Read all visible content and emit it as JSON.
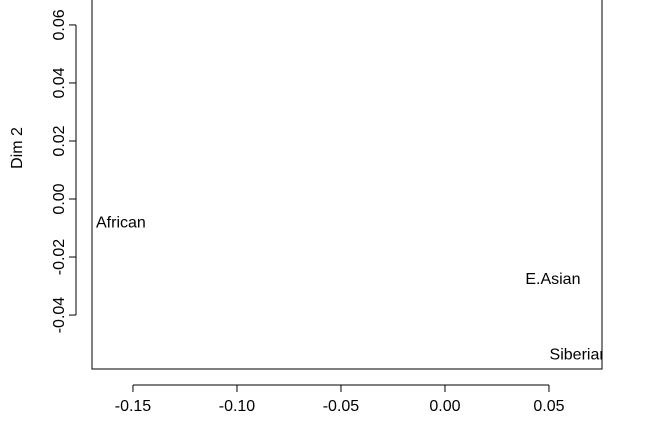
{
  "chart_data": {
    "type": "scatter",
    "y_label": "Dim 2",
    "labels": [
      "African",
      "E.Asian",
      "Siberian"
    ],
    "x": [
      -0.1558,
      0.0519,
      0.0644
    ],
    "y": [
      -0.0083,
      -0.0279,
      -0.0538
    ],
    "color": "#000000",
    "xlim": [
      -0.1697,
      0.0755
    ],
    "ylim": [
      -0.0586,
      0.0686
    ],
    "xticks": [
      -0.15,
      {
        "value": -0.1,
        "label": "-0.10"
      },
      -0.05,
      {
        "value": 0,
        "label": "0.00"
      },
      0.05
    ],
    "yticks": [
      -0.04,
      -0.02,
      {
        "value": 0,
        "label": "0.00"
      },
      0.02,
      0.04,
      0.06
    ]
  }
}
